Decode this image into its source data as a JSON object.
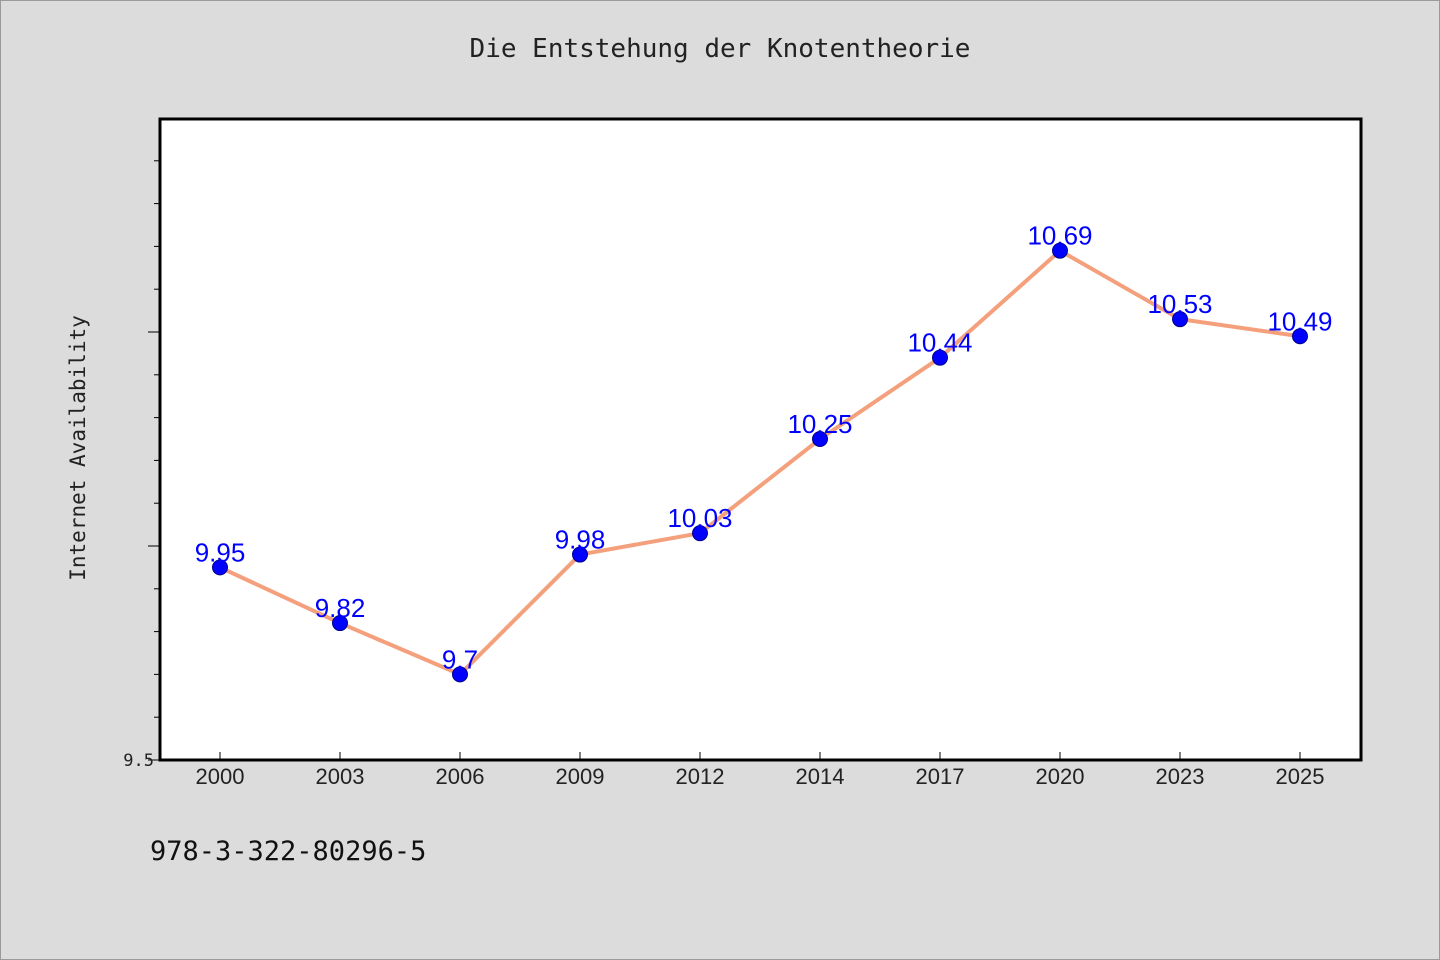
{
  "chart_data": {
    "type": "line",
    "title": "Die Entstehung der Knotentheorie",
    "xlabel": "",
    "ylabel": "Internet Availability",
    "categories": [
      "2000",
      "2003",
      "2006",
      "2009",
      "2012",
      "2014",
      "2017",
      "2020",
      "2023",
      "2025"
    ],
    "series": [
      {
        "values": [
          9.95,
          9.82,
          9.7,
          9.98,
          10.03,
          10.25,
          10.44,
          10.69,
          10.53,
          10.49
        ],
        "data_labels": [
          "9.95",
          "9.82",
          "9.7",
          "9.98",
          "10.03",
          "10.25",
          "10.44",
          "10.69",
          "10.53",
          "10.49"
        ],
        "line_color": "#f4a07c",
        "marker_color": "#0000ff"
      }
    ],
    "ylim": [
      9.5,
      11.0
    ],
    "y_tick_labels": [
      "9.5"
    ],
    "grid": false,
    "legend": "none"
  },
  "footer": {
    "isbn": "978-3-322-80296-5"
  },
  "colors": {
    "background": "#dcdcdc",
    "plot_background": "#ffffff",
    "axis": "#000000",
    "data_label": "#0000ff"
  }
}
